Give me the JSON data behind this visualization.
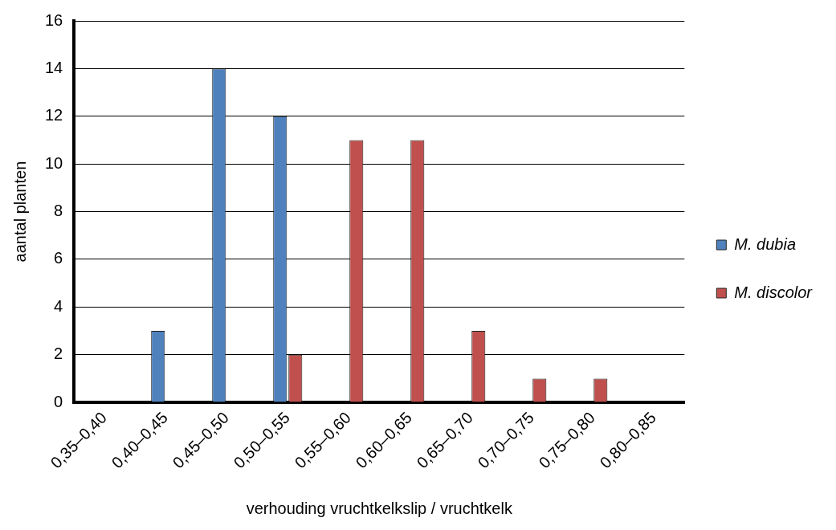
{
  "chart_data": {
    "type": "bar",
    "xlabel": "verhouding vruchtkelkslip / vruchtkelk",
    "ylabel": "aantal planten",
    "categories": [
      "0,35–0,40",
      "0,40–0,45",
      "0,45–0,50",
      "0,50–0,55",
      "0,55–0,60",
      "0,60–0,65",
      "0,65–0,70",
      "0,70–0,75",
      "0,75–0,80",
      "0,80–0,85"
    ],
    "series": [
      {
        "name": "M. dubia",
        "color": "#4f81bd",
        "values": [
          0,
          3,
          14,
          12,
          0,
          0,
          0,
          0,
          0,
          0
        ]
      },
      {
        "name": "M. discolor",
        "color": "#c0504d",
        "values": [
          0,
          0,
          0,
          2,
          11,
          11,
          3,
          1,
          1,
          0
        ]
      }
    ],
    "ylim": [
      0,
      16
    ],
    "yticks": [
      0,
      2,
      4,
      6,
      8,
      10,
      12,
      14,
      16
    ],
    "grid": "y",
    "legend": "right"
  }
}
